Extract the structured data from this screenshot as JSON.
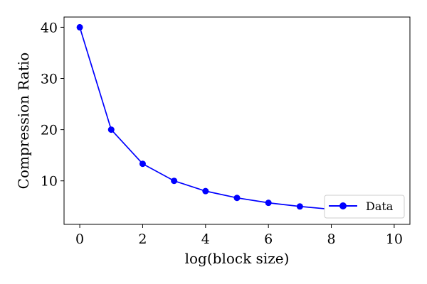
{
  "chart_data": {
    "type": "line",
    "title": "",
    "xlabel": "log(block size)",
    "ylabel": "Compression Ratio",
    "xlim": [
      -0.5,
      10.5
    ],
    "ylim": [
      1.5,
      42
    ],
    "xticks": [
      0,
      2,
      4,
      6,
      8,
      10
    ],
    "yticks": [
      10,
      20,
      30,
      40
    ],
    "grid": false,
    "legend": {
      "position": "lower-right"
    },
    "series": [
      {
        "name": "Data",
        "color": "#0000ff",
        "marker": "circle",
        "x": [
          0,
          1,
          2,
          3,
          4,
          5,
          6,
          7,
          8,
          9,
          10
        ],
        "y": [
          40,
          20,
          13.33,
          10,
          8,
          6.67,
          5.71,
          5,
          4.44,
          4,
          3.64
        ]
      }
    ]
  }
}
